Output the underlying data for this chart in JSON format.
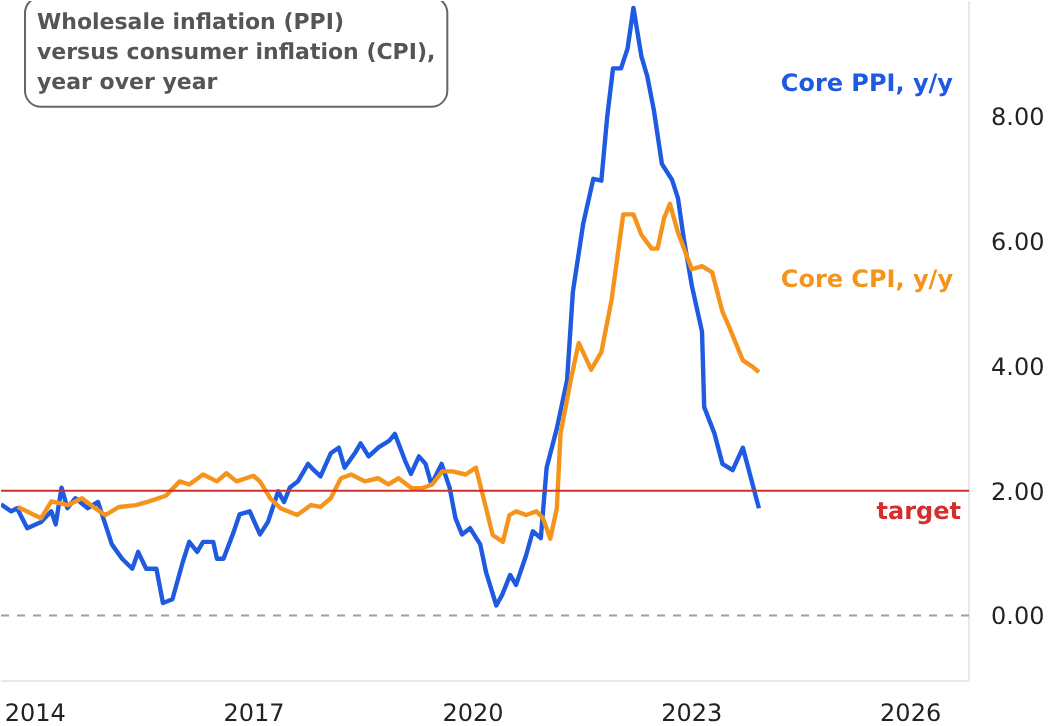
{
  "chart_data": {
    "type": "line",
    "title": "Wholesale inflation (PPI)\nversus consumer inflation (CPI),\nyear over year",
    "series": [
      {
        "name": "Core PPI, y/y",
        "color": "#1f5be0",
        "x": [
          2013.53,
          2013.67,
          2013.75,
          2013.89,
          2014.08,
          2014.22,
          2014.28,
          2014.36,
          2014.44,
          2014.55,
          2014.72,
          2014.86,
          2015.05,
          2015.19,
          2015.33,
          2015.41,
          2015.52,
          2015.66,
          2015.75,
          2015.88,
          2016.02,
          2016.11,
          2016.22,
          2016.3,
          2016.44,
          2016.49,
          2016.58,
          2016.72,
          2016.8,
          2016.94,
          2017.08,
          2017.19,
          2017.33,
          2017.41,
          2017.49,
          2017.6,
          2017.74,
          2017.82,
          2017.91,
          2018.05,
          2018.16,
          2018.24,
          2018.38,
          2018.46,
          2018.57,
          2018.71,
          2018.85,
          2018.93,
          2019.07,
          2019.15,
          2019.26,
          2019.35,
          2019.43,
          2019.57,
          2019.68,
          2019.76,
          2019.85,
          2019.96,
          2020.1,
          2020.18,
          2020.32,
          2020.4,
          2020.51,
          2020.59,
          2020.73,
          2020.82,
          2020.93,
          2021.01,
          2021.15,
          2021.29,
          2021.37,
          2021.51,
          2021.65,
          2021.76,
          2021.84,
          2021.92,
          2022.03,
          2022.12,
          2022.2,
          2022.31,
          2022.39,
          2022.48,
          2022.59,
          2022.73,
          2022.81,
          2022.89,
          2023.0,
          2023.14,
          2023.17,
          2023.31,
          2023.42,
          2023.56,
          2023.7,
          2023.92
        ],
        "values": [
          1.78,
          1.67,
          1.72,
          1.4,
          1.5,
          1.67,
          1.46,
          2.05,
          1.72,
          1.88,
          1.72,
          1.82,
          1.14,
          0.91,
          0.75,
          1.02,
          0.75,
          0.75,
          0.2,
          0.26,
          0.85,
          1.18,
          1.02,
          1.18,
          1.18,
          0.91,
          0.91,
          1.34,
          1.62,
          1.67,
          1.3,
          1.5,
          1.99,
          1.82,
          2.05,
          2.15,
          2.43,
          2.33,
          2.23,
          2.6,
          2.69,
          2.37,
          2.6,
          2.76,
          2.55,
          2.7,
          2.8,
          2.91,
          2.48,
          2.27,
          2.55,
          2.43,
          2.1,
          2.43,
          2.05,
          1.56,
          1.3,
          1.4,
          1.14,
          0.69,
          0.16,
          0.33,
          0.65,
          0.49,
          0.97,
          1.35,
          1.24,
          2.37,
          3.0,
          3.77,
          5.19,
          6.27,
          7.0,
          6.97,
          7.99,
          8.77,
          8.77,
          9.09,
          9.74,
          8.96,
          8.64,
          8.1,
          7.24,
          6.98,
          6.69,
          6.04,
          5.29,
          4.55,
          3.34,
          2.92,
          2.43,
          2.33,
          2.69,
          1.72
        ]
      },
      {
        "name": "Core CPI, y/y",
        "color": "#f5941d",
        "x": [
          2013.76,
          2014.08,
          2014.22,
          2014.45,
          2014.64,
          2014.82,
          2014.96,
          2015.15,
          2015.38,
          2015.56,
          2015.79,
          2015.98,
          2016.11,
          2016.3,
          2016.49,
          2016.62,
          2016.76,
          2016.99,
          2017.08,
          2017.22,
          2017.36,
          2017.59,
          2017.78,
          2017.91,
          2018.05,
          2018.19,
          2018.33,
          2018.52,
          2018.7,
          2018.84,
          2018.98,
          2019.16,
          2019.3,
          2019.44,
          2019.58,
          2019.72,
          2019.9,
          2020.04,
          2020.18,
          2020.27,
          2020.41,
          2020.5,
          2020.59,
          2020.73,
          2020.87,
          2020.96,
          2021.06,
          2021.15,
          2021.2,
          2021.34,
          2021.45,
          2021.62,
          2021.76,
          2021.9,
          2022.06,
          2022.2,
          2022.31,
          2022.45,
          2022.53,
          2022.62,
          2022.7,
          2022.81,
          2023.0,
          2023.14,
          2023.28,
          2023.42,
          2023.5,
          2023.7,
          2023.83,
          2023.92
        ],
        "values": [
          1.74,
          1.56,
          1.83,
          1.77,
          1.88,
          1.72,
          1.61,
          1.74,
          1.77,
          1.83,
          1.92,
          2.15,
          2.1,
          2.26,
          2.15,
          2.28,
          2.15,
          2.24,
          2.15,
          1.88,
          1.72,
          1.61,
          1.77,
          1.74,
          1.88,
          2.2,
          2.26,
          2.15,
          2.2,
          2.1,
          2.2,
          2.04,
          2.04,
          2.1,
          2.31,
          2.31,
          2.26,
          2.37,
          1.72,
          1.29,
          1.18,
          1.61,
          1.67,
          1.61,
          1.67,
          1.56,
          1.23,
          1.72,
          2.91,
          3.77,
          4.37,
          3.94,
          4.22,
          5.06,
          6.43,
          6.43,
          6.1,
          5.88,
          5.88,
          6.37,
          6.6,
          6.14,
          5.55,
          5.6,
          5.5,
          4.87,
          4.66,
          4.09,
          3.99,
          3.9
        ]
      }
    ],
    "xlim": [
      2013.53,
      2026.8
    ],
    "ylim": [
      -1.05,
      9.85
    ],
    "xticks": [
      2014,
      2017,
      2020,
      2023,
      2026
    ],
    "yticks": [
      {
        "value": 0,
        "label": "0.00"
      },
      {
        "value": 2,
        "label": "2.00"
      },
      {
        "value": 4,
        "label": "4.00"
      },
      {
        "value": 6,
        "label": "6.00"
      },
      {
        "value": 8,
        "label": "8.00"
      }
    ],
    "ref_lines": [
      {
        "axis": "y",
        "value": 2,
        "label": "target",
        "color": "#d32f2f",
        "line_style": "solid"
      },
      {
        "axis": "y",
        "value": 0,
        "label": null,
        "color": "#9e9e9e",
        "line_style": "dashed"
      }
    ],
    "grid": false,
    "legend": false,
    "line_style": "solid"
  }
}
